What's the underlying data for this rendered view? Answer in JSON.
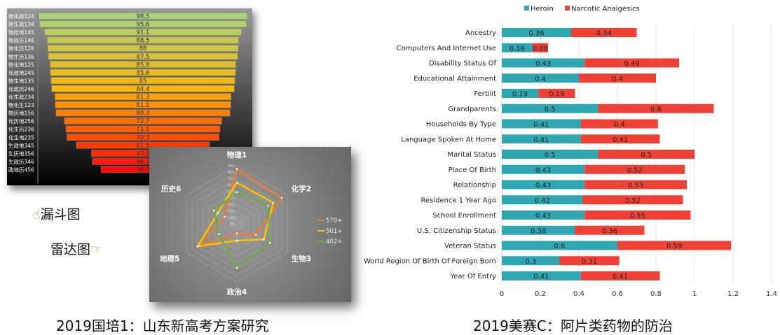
{
  "labels": {
    "funnel_note": "漏斗图",
    "radar_note": "雷达图",
    "caption_left": "2019国培1：山东新高考方案研究",
    "caption_right": "2019美赛C：阿片类药物的防治"
  },
  "icons": {
    "funnel_note": "pointing-up-hand-icon",
    "radar_note": "pointing-right-hand-icon"
  },
  "chart_data": [
    {
      "type": "bar",
      "subtype": "funnel",
      "categories": [
        "物化政124",
        "物生政134",
        "物政地145",
        "物政历146",
        "物化历126",
        "物生历136",
        "物化地125",
        "化政地245",
        "物生地135",
        "化政历246",
        "化生政234",
        "物化生123",
        "物历地156",
        "化历地256",
        "化生历236",
        "化生地235",
        "生政地345",
        "生历地356",
        "生政历346",
        "政地历456"
      ],
      "values": [
        96.5,
        95.6,
        91.1,
        88.5,
        88,
        87.5,
        85.8,
        85.6,
        85,
        84.4,
        81.3,
        81.1,
        80.3,
        72.7,
        71.1,
        70.3,
        61.5,
        47.6,
        46.7,
        38.7
      ]
    },
    {
      "type": "radar",
      "axes": [
        "物理1",
        "化学2",
        "生物3",
        "政治4",
        "地理5",
        "历史6"
      ],
      "ticks": [
        "0%",
        "10%",
        "20%",
        "30%",
        "40%",
        "50%",
        "60%",
        "70%",
        "80%",
        "90%"
      ],
      "series": [
        {
          "name": "570+",
          "color": "#ed7d31",
          "values": [
            85,
            80,
            34,
            15,
            69,
            22
          ]
        },
        {
          "name": "501+",
          "color": "#ffc000",
          "values": [
            64,
            65,
            48,
            26,
            70,
            34
          ]
        },
        {
          "name": "402+",
          "color": "#70ad47",
          "values": [
            49,
            56,
            59,
            68,
            32,
            41
          ]
        }
      ],
      "legend": "right"
    },
    {
      "type": "bar",
      "subtype": "stacked-horizontal",
      "categories": [
        "Ancestry",
        "Computers And Internet Use",
        "Disability Status Of",
        "Educational Attainment",
        "Fertilit",
        "Grandparents",
        "Households By Type",
        "Language Spoken At Home",
        "Marital Status",
        "Place Of Birth",
        "Relationship",
        "Residence 1 Year Ago",
        "School Enrollment",
        "U.S. Citizenship Status",
        "Veteran Status",
        "World Region Of Birth Of Foreign Born",
        "Year Of Entry"
      ],
      "series": [
        {
          "name": "Heroin",
          "color": "#2ea7b0",
          "values": [
            0.36,
            0.16,
            0.43,
            0.4,
            0.19,
            0.5,
            0.41,
            0.41,
            0.5,
            0.43,
            0.43,
            0.42,
            0.43,
            0.38,
            0.6,
            0.3,
            0.41
          ]
        },
        {
          "name": "Narcotic Analgesics",
          "color": "#ef4136",
          "values": [
            0.34,
            0.08,
            0.49,
            0.4,
            0.19,
            0.6,
            0.4,
            0.41,
            0.5,
            0.52,
            0.53,
            0.52,
            0.55,
            0.36,
            0.59,
            0.31,
            0.41
          ]
        }
      ],
      "xticks": [
        "0",
        "0.2",
        "0.4",
        "0.6",
        "0.8",
        "1",
        "1.2",
        "1.4"
      ],
      "xlim": [
        0,
        1.4
      ],
      "legend": "top",
      "grid": true
    }
  ]
}
